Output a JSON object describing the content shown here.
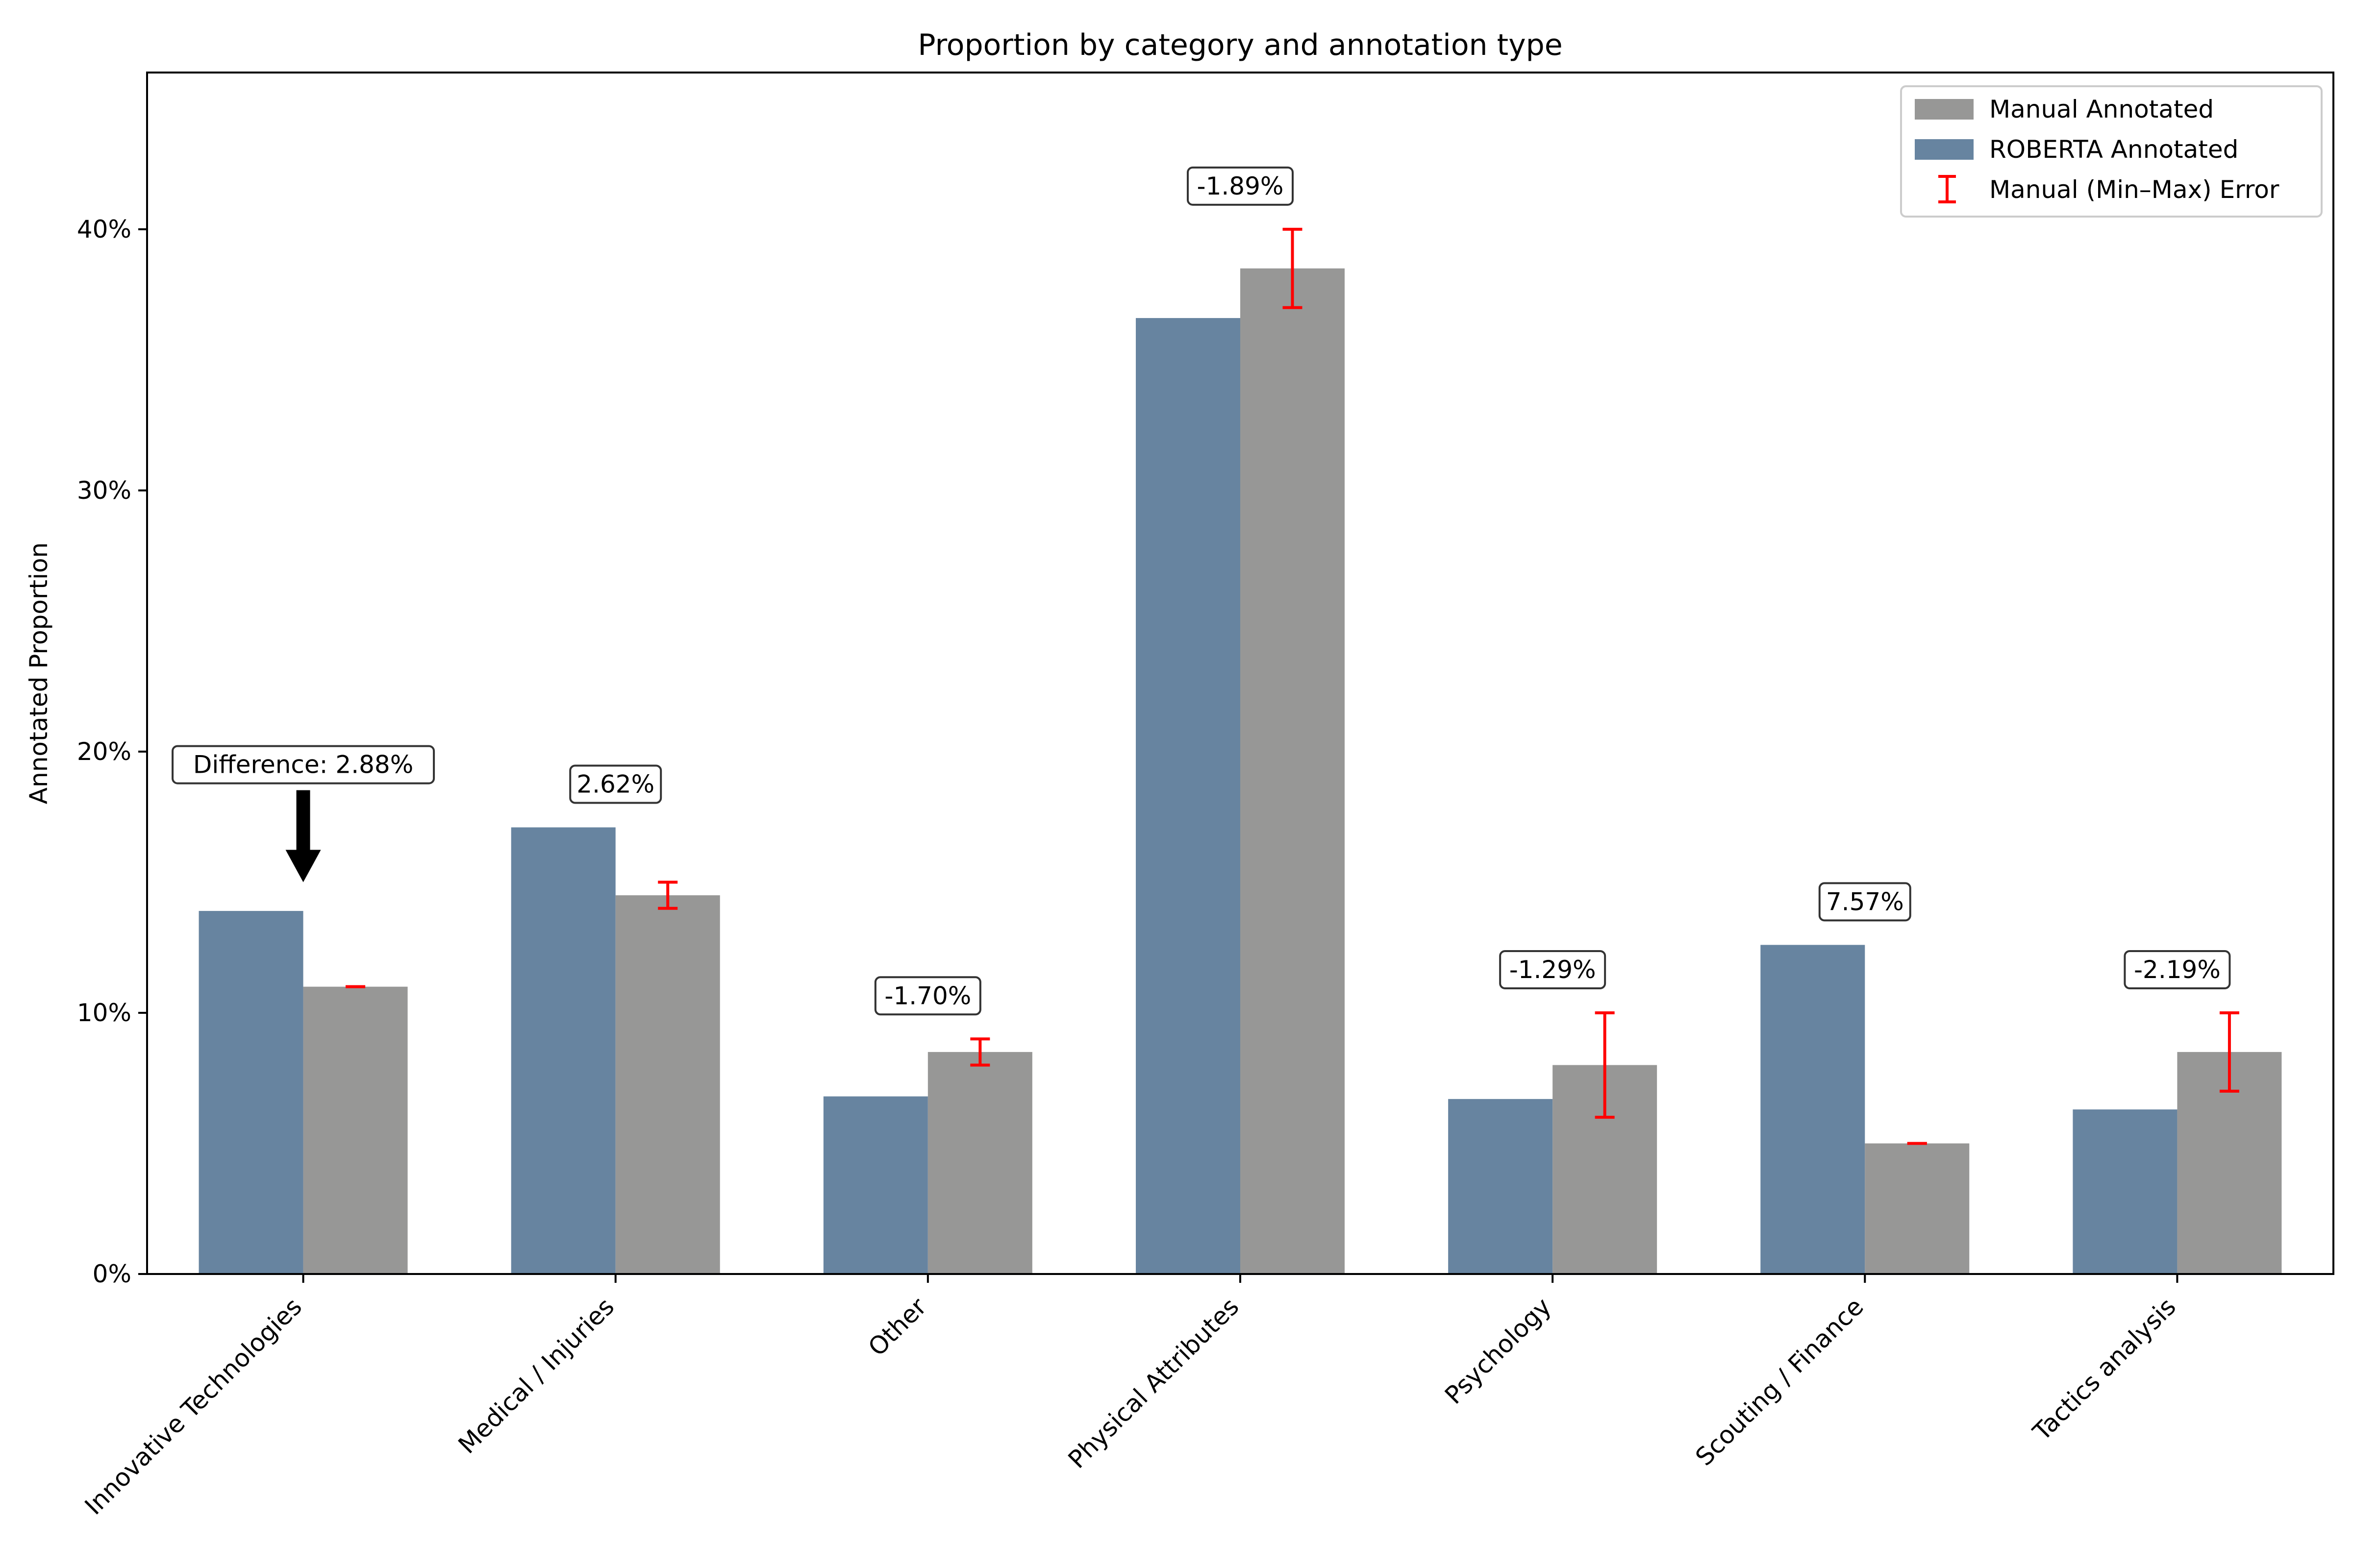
{
  "chart_data": {
    "type": "bar",
    "title": "Proportion by category and annotation type",
    "xlabel": "",
    "ylabel": "Annotated Proportion",
    "ylim": [
      0,
      0.46
    ],
    "yticks": [
      0,
      0.1,
      0.2,
      0.3,
      0.4
    ],
    "ytick_labels": [
      "0%",
      "10%",
      "20%",
      "30%",
      "40%"
    ],
    "grid": false,
    "legend_position": "top-right",
    "categories": [
      "Innovative Technologies",
      "Medical / Injuries",
      "Other",
      "Physical Attributes",
      "Psychology",
      "Scouting / Finance",
      "Tactics analysis"
    ],
    "series": [
      {
        "name": "ROBERTA Annotated",
        "color": "#6784a0",
        "values": [
          0.139,
          0.171,
          0.068,
          0.366,
          0.067,
          0.126,
          0.063
        ]
      },
      {
        "name": "Manual Annotated",
        "color": "#979796",
        "values": [
          0.11,
          0.145,
          0.085,
          0.385,
          0.08,
          0.05,
          0.085
        ],
        "error_min": [
          0.11,
          0.14,
          0.08,
          0.37,
          0.06,
          0.05,
          0.07
        ],
        "error_max": [
          0.11,
          0.15,
          0.09,
          0.4,
          0.1,
          0.05,
          0.1
        ]
      }
    ],
    "error_legend": "Manual (Min–Max) Error",
    "error_color": "#ff0000",
    "legend_order": [
      "Manual Annotated",
      "ROBERTA Annotated",
      "Manual (Min–Max) Error"
    ],
    "difference_labels": [
      "Difference: 2.88%",
      "2.62%",
      "-1.70%",
      "-1.89%",
      "-1.29%",
      "7.57%",
      "-2.19%"
    ],
    "arrow_category": "Innovative Technologies"
  }
}
